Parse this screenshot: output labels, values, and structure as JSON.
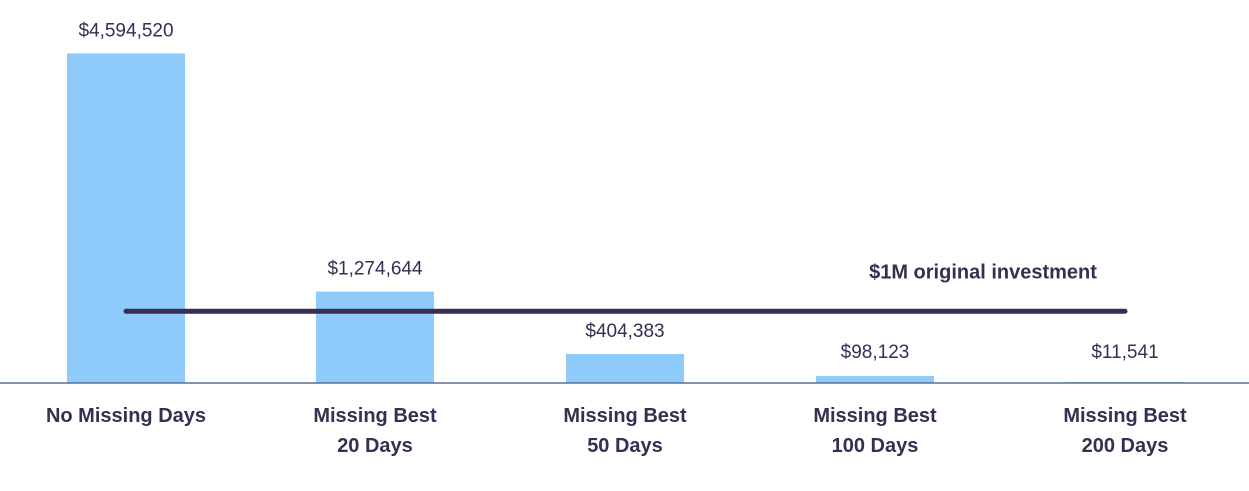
{
  "chart_data": {
    "type": "bar",
    "categories": [
      [
        "No Missing Days"
      ],
      [
        "Missing Best",
        "20 Days"
      ],
      [
        "Missing Best",
        "50 Days"
      ],
      [
        "Missing Best",
        "100 Days"
      ],
      [
        "Missing Best",
        "200 Days"
      ]
    ],
    "values": [
      4594520,
      1274644,
      404383,
      98123,
      11541
    ],
    "value_labels": [
      "$4,594,520",
      "$1,274,644",
      "$404,383",
      "$98,123",
      "$11,541"
    ],
    "ylim": [
      0,
      4600000
    ],
    "reference_line": {
      "value": 1000000,
      "label": "$1M original investment"
    },
    "grid": false,
    "colors": {
      "bar": "#8ecbfb",
      "reference_line": "#3a2d52",
      "axis": "#5a6e94",
      "text": "#3a2d52"
    }
  }
}
